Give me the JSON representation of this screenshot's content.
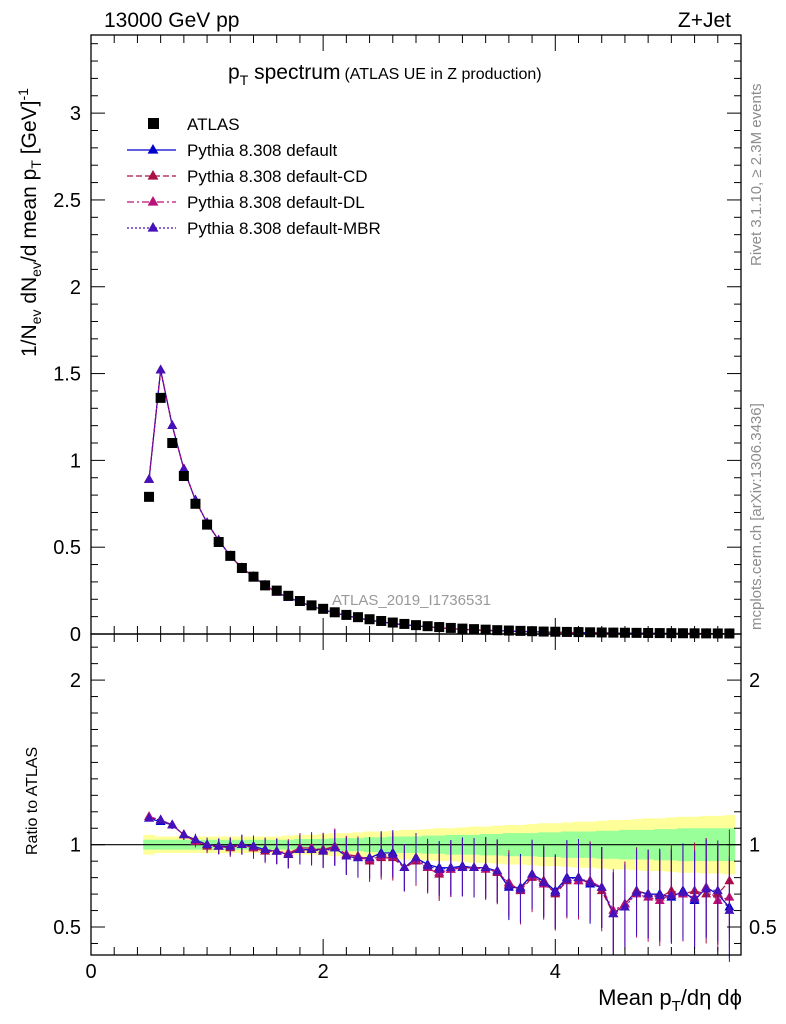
{
  "header": {
    "energy_label": "13000 GeV pp",
    "process_label": "Z+Jet",
    "title_main": "p",
    "title_sub": "T",
    "title_rest": " spectrum",
    "title_detail": "(ATLAS UE in Z production)",
    "analysis_id": "ATLAS_2019_I1736531"
  },
  "side_labels": {
    "rivet": "Rivet 3.1.10, ≥ 2.3M events",
    "mcplots": "mcplots.cern.ch [arXiv:1306.3436]"
  },
  "axes": {
    "ylabel_top": "1/N_ev dN_ev/d mean p_T [GeV]^-1",
    "ylabel_top_parts": {
      "a": "1/N",
      "b": "ev",
      "c": " dN",
      "d": "ev",
      "e": "/d mean p",
      "f": "T",
      "g": " [GeV]",
      "h": "-1"
    },
    "ylabel_bottom": "Ratio to ATLAS",
    "xlabel_parts": {
      "a": "Mean p",
      "b": "T",
      "c": "/dη dϕ"
    },
    "top_yticks": [
      "0",
      "0.5",
      "1",
      "1.5",
      "2",
      "2.5",
      "3"
    ],
    "bottom_yticks_left": [
      "0.5",
      "1",
      "2"
    ],
    "bottom_yticks_right": [
      "0.5",
      "1",
      "2"
    ],
    "xticks": [
      "0",
      "2",
      "4"
    ]
  },
  "legend": [
    {
      "label": "ATLAS",
      "color": "#000000",
      "style": "marker-square"
    },
    {
      "label": "Pythia 8.308 default",
      "color": "#0000cc",
      "style": "solid"
    },
    {
      "label": "Pythia 8.308 default-CD",
      "color": "#aa1144",
      "style": "dash"
    },
    {
      "label": "Pythia 8.308 default-DL",
      "color": "#bb1177",
      "style": "dashdot"
    },
    {
      "label": "Pythia 8.308 default-MBR",
      "color": "#4411bb",
      "style": "dot"
    }
  ],
  "chart_data": {
    "type": "scatter",
    "x": [
      0.5,
      0.6,
      0.7,
      0.8,
      0.9,
      1.0,
      1.1,
      1.2,
      1.3,
      1.4,
      1.5,
      1.6,
      1.7,
      1.8,
      1.9,
      2.0,
      2.1,
      2.2,
      2.3,
      2.4,
      2.5,
      2.6,
      2.7,
      2.8,
      2.9,
      3.0,
      3.1,
      3.2,
      3.3,
      3.4,
      3.5,
      3.6,
      3.7,
      3.8,
      3.9,
      4.0,
      4.1,
      4.2,
      4.3,
      4.4,
      4.5,
      4.6,
      4.7,
      4.8,
      4.9,
      5.0,
      5.1,
      5.2,
      5.3,
      5.4,
      5.5
    ],
    "xlim": [
      0,
      5.6
    ],
    "ylim_top": [
      0,
      3.45
    ],
    "ylim_ratio": [
      0.33,
      2.28
    ],
    "series": [
      {
        "name": "ATLAS",
        "values": [
          0.79,
          1.36,
          1.1,
          0.91,
          0.75,
          0.63,
          0.53,
          0.45,
          0.38,
          0.33,
          0.28,
          0.25,
          0.22,
          0.19,
          0.165,
          0.145,
          0.125,
          0.11,
          0.097,
          0.085,
          0.075,
          0.066,
          0.058,
          0.051,
          0.045,
          0.04,
          0.035,
          0.031,
          0.028,
          0.025,
          0.022,
          0.02,
          0.018,
          0.016,
          0.014,
          0.013,
          0.012,
          0.011,
          0.0098,
          0.0088,
          0.008,
          0.0072,
          0.0065,
          0.0059,
          0.0053,
          0.0048,
          0.0044,
          0.004,
          0.0036,
          0.0033,
          0.003
        ]
      },
      {
        "name": "Pythia 8.308 default",
        "values": [
          0.89,
          1.52,
          1.2,
          0.95,
          0.77,
          0.64,
          0.54,
          0.45,
          0.38,
          0.33,
          0.28,
          0.24,
          0.21,
          0.185,
          0.16,
          0.14,
          0.122,
          0.106,
          0.092,
          0.08,
          0.07,
          0.061,
          0.053,
          0.047,
          0.041,
          0.036,
          0.031,
          0.027,
          0.024,
          0.021,
          0.019,
          0.017,
          0.015,
          0.013,
          0.011,
          0.01,
          0.009,
          0.008,
          0.0072,
          0.0064,
          0.0055,
          0.005,
          0.0045,
          0.0041,
          0.0037,
          0.0033,
          0.003,
          0.0027,
          0.0025,
          0.0022,
          0.002
        ]
      },
      {
        "name": "Pythia 8.308 default-CD",
        "values": [
          0.89,
          1.52,
          1.2,
          0.95,
          0.77,
          0.64,
          0.54,
          0.45,
          0.38,
          0.33,
          0.28,
          0.24,
          0.21,
          0.185,
          0.16,
          0.14,
          0.122,
          0.106,
          0.092,
          0.08,
          0.07,
          0.061,
          0.053,
          0.047,
          0.041,
          0.036,
          0.031,
          0.027,
          0.024,
          0.021,
          0.019,
          0.017,
          0.015,
          0.013,
          0.011,
          0.01,
          0.009,
          0.008,
          0.0072,
          0.0064,
          0.0055,
          0.005,
          0.0045,
          0.0041,
          0.0037,
          0.0033,
          0.003,
          0.0027,
          0.0025,
          0.0022,
          0.002
        ]
      },
      {
        "name": "Pythia 8.308 default-DL",
        "values": [
          0.89,
          1.52,
          1.2,
          0.95,
          0.77,
          0.64,
          0.54,
          0.45,
          0.38,
          0.33,
          0.28,
          0.24,
          0.21,
          0.185,
          0.16,
          0.14,
          0.122,
          0.106,
          0.092,
          0.08,
          0.07,
          0.061,
          0.053,
          0.047,
          0.041,
          0.036,
          0.031,
          0.027,
          0.024,
          0.021,
          0.019,
          0.017,
          0.015,
          0.013,
          0.011,
          0.01,
          0.009,
          0.008,
          0.0072,
          0.0064,
          0.0055,
          0.005,
          0.0045,
          0.0041,
          0.0037,
          0.0033,
          0.003,
          0.0027,
          0.0025,
          0.0022,
          0.002
        ]
      },
      {
        "name": "Pythia 8.308 default-MBR",
        "values": [
          0.89,
          1.52,
          1.2,
          0.95,
          0.77,
          0.64,
          0.54,
          0.45,
          0.38,
          0.33,
          0.28,
          0.24,
          0.21,
          0.185,
          0.16,
          0.14,
          0.122,
          0.106,
          0.092,
          0.08,
          0.07,
          0.061,
          0.053,
          0.047,
          0.041,
          0.036,
          0.031,
          0.027,
          0.024,
          0.021,
          0.019,
          0.017,
          0.015,
          0.013,
          0.011,
          0.01,
          0.009,
          0.008,
          0.0072,
          0.0064,
          0.0055,
          0.005,
          0.0045,
          0.0041,
          0.0037,
          0.0033,
          0.003,
          0.0027,
          0.0025,
          0.0022,
          0.002
        ]
      }
    ],
    "ratio_series": [
      {
        "name": "Pythia 8.308 default",
        "values": [
          1.16,
          1.14,
          1.12,
          1.06,
          1.03,
          1.0,
          0.99,
          0.99,
          1.0,
          0.99,
          0.97,
          0.96,
          0.94,
          0.97,
          0.97,
          0.97,
          0.98,
          0.93,
          0.92,
          0.92,
          0.95,
          0.95,
          0.86,
          0.92,
          0.88,
          0.86,
          0.86,
          0.87,
          0.86,
          0.86,
          0.84,
          0.74,
          0.74,
          0.82,
          0.78,
          0.72,
          0.8,
          0.8,
          0.76,
          0.74,
          0.58,
          0.64,
          0.72,
          0.7,
          0.7,
          0.68,
          0.72,
          0.66,
          0.74,
          0.7,
          0.62
        ]
      },
      {
        "name": "Pythia 8.308 default-CD",
        "values": [
          1.17,
          1.15,
          1.12,
          1.06,
          1.02,
          0.99,
          0.99,
          0.98,
          1.0,
          0.98,
          0.96,
          0.96,
          0.94,
          0.98,
          0.98,
          0.97,
          0.99,
          0.94,
          0.93,
          0.9,
          0.92,
          0.92,
          0.86,
          0.9,
          0.86,
          0.82,
          0.85,
          0.86,
          0.86,
          0.86,
          0.83,
          0.77,
          0.72,
          0.8,
          0.78,
          0.7,
          0.78,
          0.78,
          0.78,
          0.72,
          0.58,
          0.64,
          0.72,
          0.7,
          0.68,
          0.72,
          0.7,
          0.72,
          0.7,
          0.7,
          0.78
        ]
      },
      {
        "name": "Pythia 8.308 default-DL",
        "values": [
          1.17,
          1.15,
          1.12,
          1.06,
          1.02,
          1.0,
          0.99,
          0.99,
          1.0,
          0.98,
          0.97,
          0.96,
          0.95,
          0.98,
          0.98,
          0.96,
          0.99,
          0.94,
          0.93,
          0.91,
          0.93,
          0.93,
          0.86,
          0.91,
          0.86,
          0.83,
          0.85,
          0.86,
          0.86,
          0.85,
          0.84,
          0.76,
          0.73,
          0.81,
          0.76,
          0.71,
          0.79,
          0.78,
          0.78,
          0.74,
          0.6,
          0.64,
          0.7,
          0.68,
          0.66,
          0.7,
          0.7,
          0.68,
          0.74,
          0.66,
          0.68
        ]
      },
      {
        "name": "Pythia 8.308 default-MBR",
        "values": [
          1.16,
          1.15,
          1.12,
          1.06,
          1.03,
          1.0,
          0.99,
          0.99,
          1.0,
          0.99,
          0.97,
          0.96,
          0.94,
          0.97,
          0.97,
          0.96,
          0.98,
          0.93,
          0.92,
          0.92,
          0.94,
          0.94,
          0.86,
          0.92,
          0.87,
          0.85,
          0.86,
          0.86,
          0.86,
          0.86,
          0.84,
          0.75,
          0.73,
          0.82,
          0.77,
          0.71,
          0.79,
          0.8,
          0.77,
          0.74,
          0.58,
          0.62,
          0.71,
          0.7,
          0.69,
          0.69,
          0.71,
          0.67,
          0.73,
          0.72,
          0.6
        ]
      }
    ],
    "band_inner": [
      0.03,
      0.03,
      0.03,
      0.03,
      0.03,
      0.03,
      0.03,
      0.03,
      0.03,
      0.03,
      0.03,
      0.03,
      0.03,
      0.035,
      0.035,
      0.035,
      0.04,
      0.04,
      0.04,
      0.045,
      0.045,
      0.05,
      0.05,
      0.05,
      0.055,
      0.055,
      0.06,
      0.06,
      0.06,
      0.065,
      0.065,
      0.07,
      0.07,
      0.07,
      0.075,
      0.075,
      0.08,
      0.08,
      0.08,
      0.085,
      0.085,
      0.09,
      0.09,
      0.09,
      0.095,
      0.095,
      0.1,
      0.1,
      0.1,
      0.1,
      0.1
    ],
    "band_outer": [
      0.06,
      0.05,
      0.05,
      0.05,
      0.05,
      0.05,
      0.05,
      0.05,
      0.05,
      0.05,
      0.05,
      0.05,
      0.055,
      0.06,
      0.06,
      0.065,
      0.07,
      0.07,
      0.075,
      0.08,
      0.08,
      0.085,
      0.09,
      0.09,
      0.095,
      0.1,
      0.1,
      0.105,
      0.11,
      0.11,
      0.115,
      0.12,
      0.12,
      0.125,
      0.13,
      0.13,
      0.135,
      0.14,
      0.14,
      0.145,
      0.15,
      0.15,
      0.155,
      0.16,
      0.16,
      0.165,
      0.17,
      0.17,
      0.175,
      0.175,
      0.18
    ],
    "colors": {
      "inner_band": "#99ff99",
      "outer_band": "#ffff99"
    },
    "legend_position": "top-left",
    "grid": false
  }
}
